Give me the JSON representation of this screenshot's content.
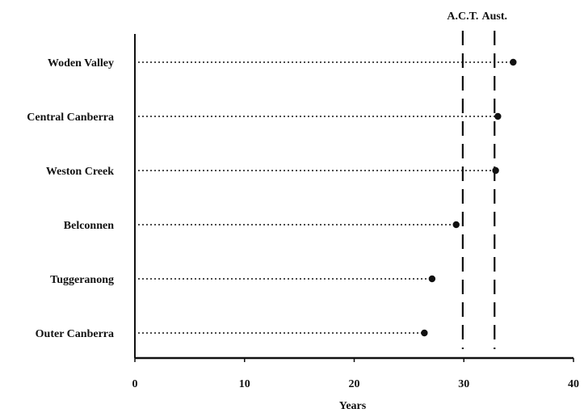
{
  "chart_data": {
    "type": "scatter",
    "style": "dot-plot",
    "categories": [
      "Woden Valley",
      "Central Canberra",
      "Weston Creek",
      "Belconnen",
      "Tuggeranong",
      "Outer Canberra"
    ],
    "values": [
      34.5,
      33.1,
      32.9,
      29.3,
      27.1,
      26.4
    ],
    "xlabel": "Years",
    "ylabel": "",
    "xlim": [
      0,
      40
    ],
    "xticks": [
      "0",
      "10",
      "20",
      "30",
      "40"
    ],
    "reference_lines": [
      {
        "label": "A.C.T.",
        "value": 29.9
      },
      {
        "label": "Aust.",
        "value": 32.8
      }
    ],
    "grid": false,
    "legend": "none",
    "colors": {
      "ink": "#111111",
      "background": "#ffffff"
    }
  }
}
